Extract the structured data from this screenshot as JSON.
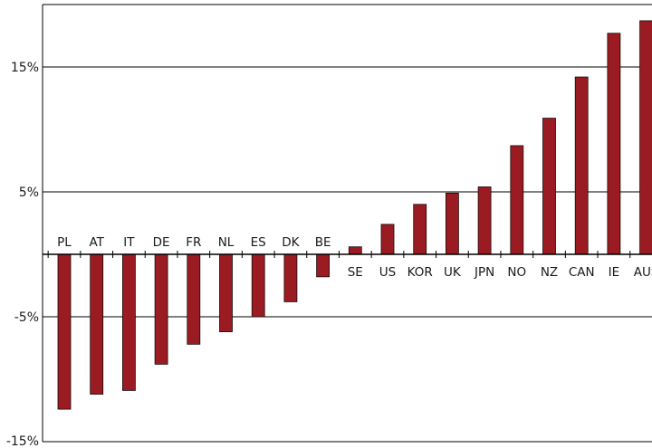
{
  "chart_data": {
    "type": "bar",
    "title": "",
    "xlabel": "",
    "ylabel": "",
    "ylim": [
      -15,
      20
    ],
    "yticks": [
      15,
      5,
      -5,
      -15
    ],
    "ytick_labels": [
      "15%",
      "5%",
      "-5%",
      "-15%"
    ],
    "grid": true,
    "bar_color": "#9b1b22",
    "categories": [
      "PL",
      "AT",
      "IT",
      "DE",
      "FR",
      "NL",
      "ES",
      "DK",
      "BE",
      "SE",
      "US",
      "KOR",
      "UK",
      "JPN",
      "NO",
      "NZ",
      "CAN",
      "IE",
      "AUS"
    ],
    "values": [
      -12.4,
      -11.2,
      -10.9,
      -8.8,
      -7.2,
      -6.2,
      -5.0,
      -3.8,
      -1.8,
      0.6,
      2.4,
      4.0,
      4.9,
      5.4,
      8.7,
      10.9,
      14.2,
      17.7,
      18.7
    ]
  }
}
